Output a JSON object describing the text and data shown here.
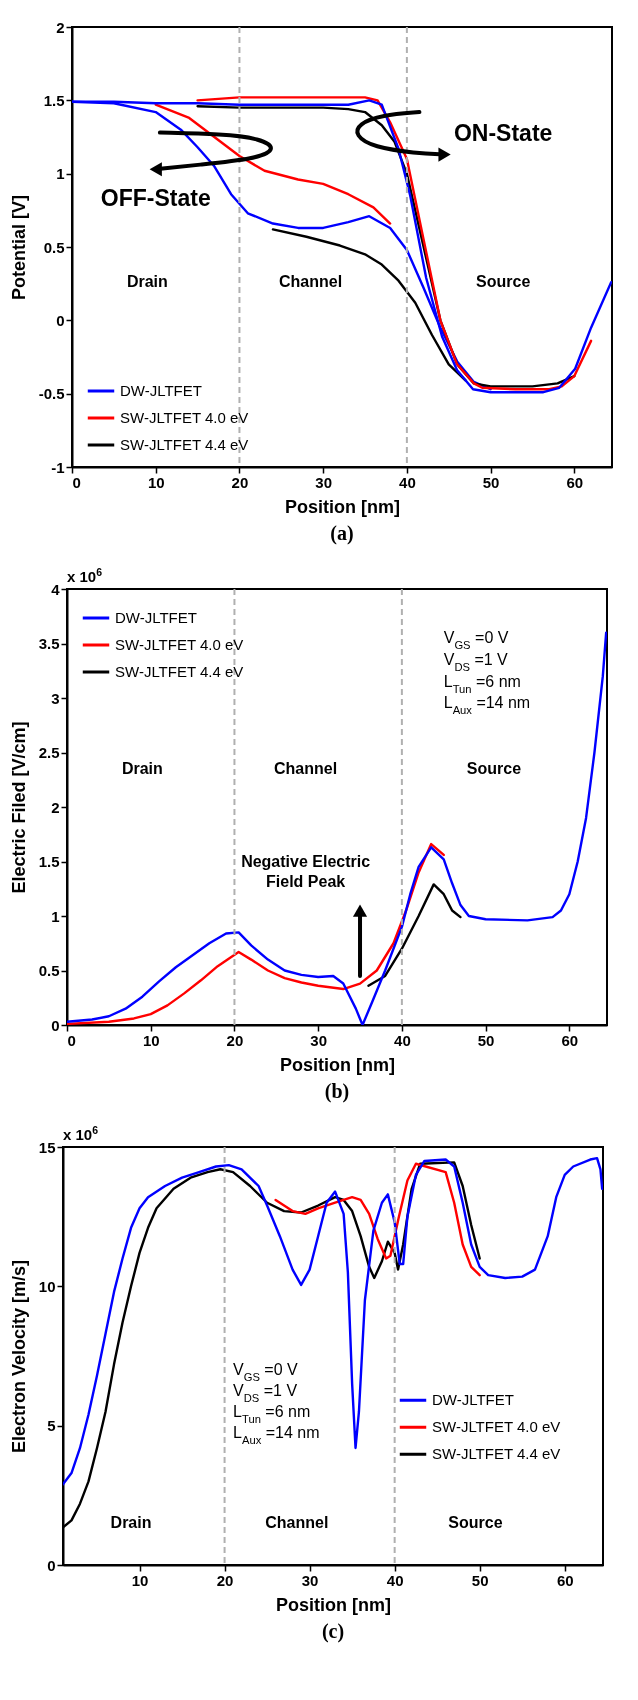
{
  "chart_data": [
    {
      "type": "line",
      "xlabel": "Position [nm]",
      "ylabel": "Potential [V]",
      "xlim": [
        0,
        64.5
      ],
      "ylim": [
        -1,
        2
      ],
      "xticks": [
        0,
        10,
        20,
        30,
        40,
        50,
        60
      ],
      "yticks": [
        -1,
        -0.5,
        0,
        0.5,
        1,
        1.5,
        2
      ],
      "grid": false,
      "legend": "bottom left",
      "line_style": "solid",
      "annotations": [
        "Drain",
        "Channel",
        "Source",
        "ON-State",
        "OFF-State",
        "(a)"
      ],
      "ref_lines": [
        {
          "axis": "x",
          "value": 20,
          "color": "#b0b0b0",
          "line_style": "dashed"
        },
        {
          "axis": "x",
          "value": 40,
          "color": "#b0b0b0",
          "line_style": "dashed"
        }
      ],
      "series": [
        {
          "name": "DW-JLTFET",
          "color": "#0000ff",
          "x": [
            0,
            5,
            10,
            15,
            20,
            25,
            30,
            33,
            35.5,
            37,
            37.6,
            39,
            40.4,
            42.3,
            44.2,
            46,
            47.9,
            50,
            53,
            56.3,
            58.2,
            60.1,
            62,
            64.4
          ],
          "values": [
            1.49,
            1.49,
            1.48,
            1.48,
            1.47,
            1.47,
            1.47,
            1.47,
            1.5,
            1.47,
            1.38,
            1.17,
            0.85,
            0.29,
            -0.11,
            -0.34,
            -0.47,
            -0.49,
            -0.49,
            -0.49,
            -0.46,
            -0.33,
            -0.05,
            0.26
          ]
        },
        {
          "name": "SW-JLTFET 4.0 eV",
          "color": "#ff0000",
          "x": [
            15,
            20,
            25,
            30,
            35,
            36.5,
            38,
            40,
            42,
            44,
            46,
            48,
            49,
            53,
            57,
            58.5,
            60,
            62
          ],
          "values": [
            1.5,
            1.52,
            1.52,
            1.52,
            1.52,
            1.5,
            1.35,
            1.1,
            0.55,
            0.0,
            -0.3,
            -0.43,
            -0.46,
            -0.47,
            -0.47,
            -0.45,
            -0.38,
            -0.14
          ]
        },
        {
          "name": "SW-JLTFET 4.4 eV",
          "color": "#000000",
          "x": [
            15,
            20,
            25,
            30,
            33,
            35,
            37,
            38.5,
            40,
            42,
            44,
            46,
            48,
            50,
            55,
            58,
            60
          ],
          "values": [
            1.46,
            1.45,
            1.45,
            1.45,
            1.44,
            1.42,
            1.33,
            1.22,
            1.0,
            0.5,
            0.0,
            -0.3,
            -0.43,
            -0.45,
            -0.45,
            -0.43,
            -0.38
          ]
        },
        {
          "color": "#0000ff",
          "x": [
            0,
            5,
            10,
            13,
            15,
            17,
            19,
            21,
            24,
            27,
            30,
            33,
            35.5,
            38,
            40,
            42,
            44,
            46,
            48,
            50
          ],
          "values": [
            1.49,
            1.48,
            1.42,
            1.3,
            1.18,
            1.05,
            0.86,
            0.73,
            0.66,
            0.63,
            0.63,
            0.67,
            0.71,
            0.63,
            0.48,
            0.22,
            -0.05,
            -0.28,
            -0.42,
            -0.47
          ]
        },
        {
          "color": "#ff0000",
          "x": [
            10,
            14,
            17,
            20,
            23,
            27,
            30,
            33,
            36,
            38
          ],
          "values": [
            1.47,
            1.38,
            1.25,
            1.12,
            1.02,
            0.96,
            0.93,
            0.86,
            0.77,
            0.66
          ]
        },
        {
          "color": "#000000",
          "x": [
            24,
            28,
            32,
            35,
            37,
            39,
            41,
            43,
            45,
            47
          ],
          "values": [
            0.62,
            0.57,
            0.51,
            0.45,
            0.38,
            0.27,
            0.12,
            -0.1,
            -0.3,
            -0.41
          ]
        }
      ]
    },
    {
      "type": "line",
      "xlabel": "Position [nm]",
      "ylabel": "Electric Filed [V/cm]",
      "xlim": [
        0,
        64.5
      ],
      "ylim": [
        0,
        4
      ],
      "xticks": [
        0,
        10,
        20,
        30,
        40,
        50,
        60
      ],
      "yticks": [
        0,
        0.5,
        1,
        1.5,
        2,
        2.5,
        3,
        3.5,
        4
      ],
      "grid": false,
      "legend": "top left",
      "line_style": "solid",
      "annotations": [
        "x 10$^{6}$",
        "V$_{GS}$ =0 V",
        "V$_{DS}$ =1 V",
        "L$_{Tun}$ =6 nm",
        "L$_{Aux}$ =14 nm",
        "Drain",
        "Channel",
        "Source",
        "Negative Electric Field Peak",
        "(b)"
      ],
      "ref_lines": [
        {
          "axis": "x",
          "value": 20,
          "color": "#b0b0b0",
          "line_style": "dashed"
        },
        {
          "axis": "x",
          "value": 40,
          "color": "#b0b0b0",
          "line_style": "dashed"
        }
      ],
      "series": [
        {
          "name": "DW-JLTFET",
          "color": "#0000ff",
          "x": [
            0,
            3,
            5,
            7,
            9,
            11,
            13,
            15,
            17,
            19,
            20.5,
            22,
            24,
            26,
            28,
            30,
            31.8,
            33,
            34.5,
            35.3,
            36.5,
            38,
            40,
            41,
            42,
            43.5,
            45,
            46,
            47,
            48,
            50,
            55,
            58,
            59,
            60,
            61,
            62,
            63,
            64,
            64.4
          ],
          "values": [
            0.03,
            0.05,
            0.08,
            0.15,
            0.26,
            0.4,
            0.53,
            0.64,
            0.75,
            0.84,
            0.85,
            0.73,
            0.6,
            0.5,
            0.46,
            0.44,
            0.45,
            0.38,
            0.15,
            0.0,
            0.22,
            0.5,
            0.9,
            1.2,
            1.45,
            1.63,
            1.52,
            1.3,
            1.1,
            1.0,
            0.97,
            0.96,
            0.99,
            1.05,
            1.2,
            1.5,
            1.9,
            2.5,
            3.2,
            3.6
          ]
        },
        {
          "name": "SW-JLTFET 4.0 eV",
          "color": "#ff0000",
          "x": [
            0,
            5,
            8,
            10,
            12,
            14,
            16,
            18,
            20.5,
            22,
            24,
            26,
            28,
            30,
            33,
            35,
            37,
            39,
            40.5,
            42,
            43.5,
            45
          ],
          "values": [
            0.01,
            0.03,
            0.06,
            0.1,
            0.18,
            0.29,
            0.41,
            0.54,
            0.67,
            0.6,
            0.5,
            0.43,
            0.39,
            0.36,
            0.33,
            0.38,
            0.5,
            0.75,
            1.05,
            1.4,
            1.66,
            1.56
          ]
        },
        {
          "name": "SW-JLTFET 4.4 eV",
          "color": "#000000",
          "x": [
            36,
            38,
            40,
            42,
            43.8,
            45,
            46,
            47
          ],
          "values": [
            0.36,
            0.45,
            0.7,
            1.0,
            1.29,
            1.2,
            1.05,
            0.99
          ]
        }
      ]
    },
    {
      "type": "line",
      "xlabel": "Position [nm]",
      "ylabel": "Electron Velocity [m/s]",
      "xlim": [
        1,
        64.5
      ],
      "ylim": [
        0,
        15
      ],
      "xticks": [
        10,
        20,
        30,
        40,
        50,
        60
      ],
      "yticks": [
        0,
        5,
        10,
        15
      ],
      "grid": false,
      "legend": "right",
      "line_style": "solid",
      "annotations": [
        "x 10$^{6}$",
        "V$_{GS}$ =0 V",
        "V$_{DS}$ =1 V",
        "L$_{Tun}$ =6 nm",
        "L$_{Aux}$ =14 nm",
        "Drain",
        "Channel",
        "Source",
        "(c)"
      ],
      "ref_lines": [
        {
          "axis": "x",
          "value": 20,
          "color": "#b0b0b0",
          "line_style": "dashed"
        },
        {
          "axis": "x",
          "value": 40,
          "color": "#b0b0b0",
          "line_style": "dashed"
        }
      ],
      "series": [
        {
          "name": "DW-JLTFET",
          "color": "#0000ff",
          "x": [
            1,
            2,
            3,
            4,
            5,
            6,
            7,
            8,
            9,
            10,
            11,
            13,
            15,
            17,
            19,
            20.5,
            22,
            24,
            25,
            26.5,
            28,
            29,
            30,
            31,
            32,
            33,
            34,
            34.5,
            35,
            35.4,
            35.8,
            36.5,
            37.5,
            38.5,
            39.2,
            40,
            40.6,
            41,
            41.5,
            42.5,
            43.5,
            46,
            47,
            48,
            49,
            50,
            51,
            53,
            55,
            56.5,
            58,
            59,
            60,
            61,
            63,
            63.8,
            64.2,
            64.4
          ],
          "values": [
            2.9,
            3.3,
            4.2,
            5.4,
            6.8,
            8.3,
            9.8,
            11.0,
            12.1,
            12.8,
            13.2,
            13.6,
            13.9,
            14.1,
            14.3,
            14.35,
            14.2,
            13.6,
            12.9,
            11.8,
            10.6,
            10.05,
            10.6,
            11.8,
            13.0,
            13.4,
            12.6,
            10.5,
            6.5,
            4.2,
            5.5,
            9.5,
            12.0,
            13.0,
            13.3,
            12.3,
            10.8,
            10.8,
            12.5,
            14.0,
            14.5,
            14.55,
            14.3,
            13.0,
            11.5,
            10.7,
            10.4,
            10.3,
            10.35,
            10.6,
            11.8,
            13.2,
            14.0,
            14.3,
            14.55,
            14.6,
            14.2,
            13.5
          ]
        },
        {
          "name": "SW-JLTFET 4.0 eV",
          "color": "#ff0000",
          "x": [
            26,
            28,
            29.5,
            31,
            33,
            35,
            36,
            37,
            38,
            39,
            39.5,
            40.5,
            41.5,
            42.5,
            46,
            47,
            48,
            49,
            50
          ],
          "values": [
            13.1,
            12.7,
            12.6,
            12.8,
            13.0,
            13.2,
            13.1,
            12.6,
            11.7,
            11.0,
            11.1,
            12.5,
            13.8,
            14.4,
            14.1,
            13.0,
            11.5,
            10.7,
            10.4
          ]
        },
        {
          "name": "SW-JLTFET 4.4 eV",
          "color": "#000000",
          "x": [
            1,
            2,
            3,
            4,
            5,
            6,
            7,
            8,
            9,
            10,
            11,
            12,
            14,
            16,
            18,
            19.5,
            21,
            23,
            25,
            27,
            29,
            31,
            33,
            34,
            35,
            36,
            37,
            37.6,
            38.5,
            39.2,
            40,
            40.4,
            41,
            42,
            43,
            47,
            48,
            49,
            50
          ],
          "values": [
            1.35,
            1.6,
            2.2,
            3.0,
            4.2,
            5.5,
            7.2,
            8.7,
            10.0,
            11.2,
            12.1,
            12.8,
            13.5,
            13.9,
            14.1,
            14.2,
            14.1,
            13.6,
            13.0,
            12.7,
            12.65,
            12.9,
            13.2,
            13.1,
            12.7,
            11.8,
            10.7,
            10.3,
            10.9,
            11.6,
            11.2,
            10.6,
            11.5,
            13.5,
            14.4,
            14.45,
            13.6,
            12.2,
            11.0
          ]
        }
      ]
    }
  ]
}
